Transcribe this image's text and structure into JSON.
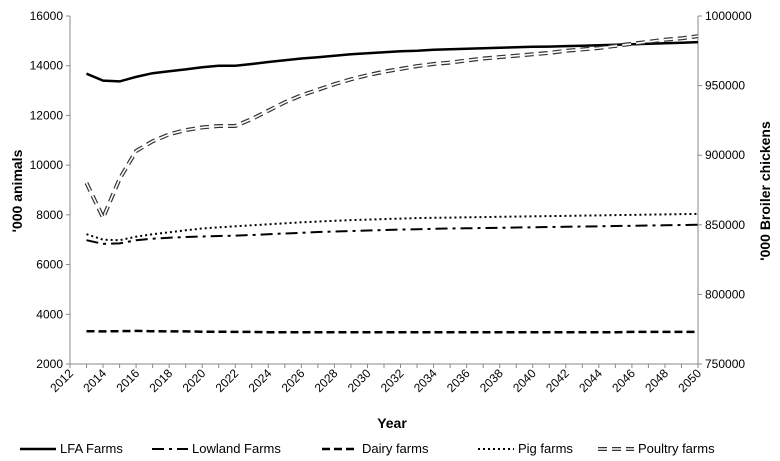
{
  "chart_data": {
    "type": "line",
    "xlabel": "Year",
    "ylabel": "'000 animals",
    "y2label": "'000 Broiler chickens",
    "ylim": [
      2000,
      16000
    ],
    "y2lim": [
      750000,
      1000000
    ],
    "xlim": [
      2012,
      2050
    ],
    "xticks": [
      "2012",
      "2014",
      "2016",
      "2018",
      "2020",
      "2022",
      "2024",
      "2026",
      "2028",
      "2030",
      "2032",
      "2034",
      "2036",
      "2038",
      "2040",
      "2042",
      "2044",
      "2046",
      "2048",
      "2050"
    ],
    "yticks": [
      "2000",
      "4000",
      "6000",
      "8000",
      "10000",
      "12000",
      "14000",
      "16000"
    ],
    "y2ticks": [
      "750000",
      "800000",
      "850000",
      "900000",
      "950000",
      "1000000"
    ],
    "grid": false,
    "legend": "bottom",
    "x": [
      2013,
      2014,
      2015,
      2016,
      2017,
      2018,
      2019,
      2020,
      2021,
      2022,
      2023,
      2024,
      2025,
      2026,
      2027,
      2028,
      2029,
      2030,
      2031,
      2032,
      2033,
      2034,
      2035,
      2036,
      2037,
      2038,
      2039,
      2040,
      2041,
      2042,
      2043,
      2044,
      2045,
      2046,
      2047,
      2048,
      2049,
      2050
    ],
    "series": [
      {
        "name": "LFA Farms",
        "axis": "left",
        "style": "solid",
        "values": [
          13680,
          13400,
          13370,
          13550,
          13700,
          13780,
          13850,
          13940,
          14000,
          14000,
          14070,
          14150,
          14220,
          14290,
          14340,
          14400,
          14460,
          14500,
          14540,
          14580,
          14600,
          14640,
          14660,
          14680,
          14700,
          14720,
          14740,
          14760,
          14770,
          14790,
          14800,
          14820,
          14840,
          14860,
          14880,
          14900,
          14920,
          14950
        ]
      },
      {
        "name": "Lowland Farms",
        "axis": "left",
        "style": "dashdot",
        "values": [
          6980,
          6830,
          6850,
          6980,
          7040,
          7080,
          7110,
          7130,
          7150,
          7160,
          7190,
          7220,
          7250,
          7280,
          7310,
          7330,
          7350,
          7370,
          7390,
          7410,
          7420,
          7440,
          7450,
          7460,
          7470,
          7480,
          7490,
          7500,
          7510,
          7520,
          7530,
          7540,
          7550,
          7560,
          7570,
          7580,
          7590,
          7600
        ]
      },
      {
        "name": "Dairy farms",
        "axis": "left",
        "style": "dashed",
        "values": [
          3320,
          3310,
          3320,
          3330,
          3320,
          3310,
          3310,
          3300,
          3300,
          3290,
          3290,
          3280,
          3280,
          3280,
          3280,
          3280,
          3280,
          3280,
          3280,
          3280,
          3280,
          3280,
          3280,
          3280,
          3280,
          3280,
          3280,
          3280,
          3280,
          3280,
          3280,
          3280,
          3280,
          3290,
          3290,
          3290,
          3290,
          3290
        ]
      },
      {
        "name": "Pig farms",
        "axis": "left",
        "style": "dotted",
        "values": [
          7220,
          7000,
          6980,
          7120,
          7220,
          7300,
          7380,
          7450,
          7500,
          7540,
          7580,
          7620,
          7660,
          7700,
          7730,
          7760,
          7790,
          7810,
          7830,
          7850,
          7870,
          7880,
          7890,
          7900,
          7910,
          7920,
          7930,
          7940,
          7950,
          7960,
          7970,
          7980,
          7990,
          8000,
          8010,
          8020,
          8030,
          8040
        ]
      },
      {
        "name": "Poultry farms",
        "axis": "right",
        "style": "double-dashed",
        "values": [
          880000,
          855000,
          883000,
          903000,
          910000,
          915000,
          918000,
          920000,
          921000,
          921000,
          926000,
          932000,
          938000,
          943000,
          947000,
          951000,
          954500,
          957500,
          960000,
          962000,
          964000,
          965500,
          966500,
          968000,
          969500,
          970500,
          971500,
          972500,
          973500,
          975000,
          976000,
          977000,
          978500,
          980000,
          981500,
          983000,
          984000,
          985500
        ]
      }
    ]
  }
}
